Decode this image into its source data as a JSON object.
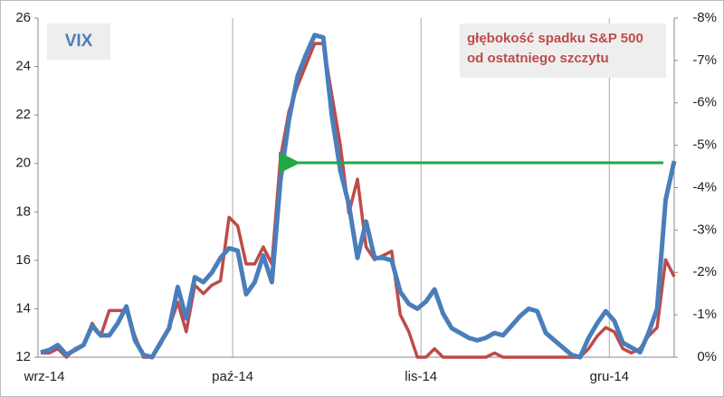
{
  "chart_data": {
    "type": "line",
    "categories": [
      "wrz-14",
      null,
      null,
      null,
      null,
      null,
      null,
      null,
      null,
      null,
      null,
      null,
      null,
      null,
      null,
      null,
      null,
      null,
      null,
      null,
      null,
      null,
      "paź-14",
      null,
      null,
      null,
      null,
      null,
      null,
      null,
      null,
      null,
      null,
      null,
      null,
      null,
      null,
      null,
      null,
      null,
      null,
      null,
      null,
      null,
      "lis-14",
      null,
      null,
      null,
      null,
      null,
      null,
      null,
      null,
      null,
      null,
      null,
      null,
      null,
      null,
      null,
      null,
      null,
      null,
      null,
      null,
      null,
      "gru-14",
      null,
      null,
      null,
      null,
      null,
      null,
      null,
      null
    ],
    "series": [
      {
        "name": "VIX",
        "color": "#4a7ebb",
        "values": [
          12.2,
          12.3,
          12.5,
          12.1,
          12.3,
          12.5,
          13.3,
          12.9,
          12.9,
          13.4,
          14.1,
          12.7,
          12.1,
          12.0,
          12.6,
          13.2,
          14.9,
          13.6,
          15.3,
          15.1,
          15.5,
          16.1,
          16.5,
          16.4,
          14.6,
          15.1,
          16.2,
          15.1,
          19.3,
          21.8,
          23.6,
          24.5,
          25.3,
          25.2,
          22.0,
          19.7,
          18.3,
          16.1,
          17.6,
          16.1,
          16.1,
          16.0,
          14.7,
          14.2,
          14.0,
          14.3,
          14.8,
          13.8,
          13.2,
          13.0,
          12.8,
          12.7,
          12.8,
          13.0,
          12.9,
          13.3,
          13.7,
          14.0,
          13.9,
          13.0,
          12.7,
          12.4,
          12.1,
          12.0,
          12.8,
          13.4,
          13.9,
          13.5,
          12.6,
          12.4,
          12.2,
          13.0,
          14.0,
          18.5,
          20.1
        ]
      },
      {
        "name": "głębokość spadku S&P 500 od ostatniego szczytu",
        "color": "#be4b48",
        "axis": "y2",
        "values": [
          -0.1,
          -0.1,
          -0.2,
          0,
          -0.2,
          -0.3,
          -0.8,
          -0.5,
          -1.1,
          -1.1,
          -1.1,
          -0.5,
          0,
          0,
          -0.3,
          -0.7,
          -1.3,
          -0.6,
          -1.7,
          -1.5,
          -1.7,
          -1.8,
          -3.3,
          -3.1,
          -2.2,
          -2.2,
          -2.6,
          -2.2,
          -4.7,
          -5.8,
          -6.4,
          -6.9,
          -7.4,
          -7.4,
          -6.2,
          -5.0,
          -3.4,
          -4.2,
          -2.6,
          -2.3,
          -2.4,
          -2.5,
          -1.0,
          -0.6,
          0,
          0,
          -0.2,
          0,
          0,
          0,
          0,
          0,
          0,
          -0.1,
          0,
          0,
          0,
          0,
          0,
          0,
          0,
          0,
          0,
          0,
          -0.2,
          -0.5,
          -0.7,
          -0.6,
          -0.2,
          -0.1,
          -0.2,
          -0.5,
          -0.7,
          -2.3,
          -1.9
        ]
      }
    ],
    "ylim": [
      12,
      26
    ],
    "yticks": [
      12,
      14,
      16,
      18,
      20,
      22,
      24,
      26
    ],
    "y2lim": [
      0,
      -8
    ],
    "y2ticks": [
      {
        "value": 0,
        "label": "0%"
      },
      {
        "value": -1,
        "label": "-1%"
      },
      {
        "value": -2,
        "label": "-2%"
      },
      {
        "value": -3,
        "label": "-3%"
      },
      {
        "value": -4,
        "label": "-4%"
      },
      {
        "value": -5,
        "label": "-5%"
      },
      {
        "value": -6,
        "label": "-6%"
      },
      {
        "value": -7,
        "label": "-7%"
      },
      {
        "value": -8,
        "label": "-8%"
      }
    ]
  }
}
